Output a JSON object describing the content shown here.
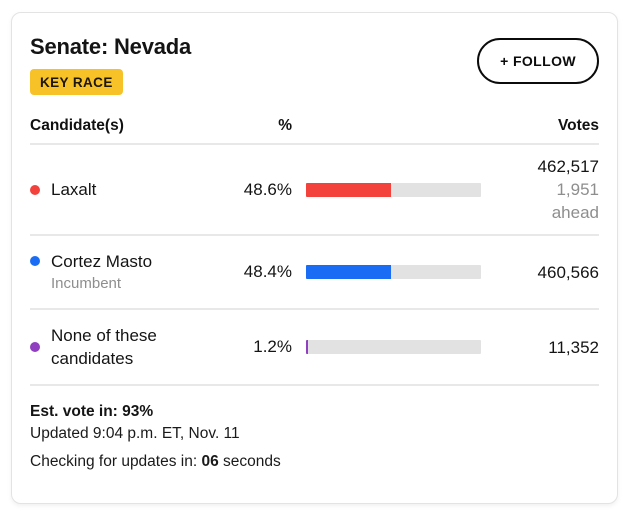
{
  "card": {
    "title": "Senate: Nevada",
    "key_race_label": "KEY RACE",
    "follow_label": "+ FOLLOW"
  },
  "colors": {
    "laxalt_red": "#F3413C",
    "cortez_masto_blue": "#1A6CF5",
    "none_purple": "#8F3FBF",
    "key_race_yellow": "#F7C128",
    "bar_track_gray": "#E2E2E2"
  },
  "table": {
    "headers": {
      "candidates": "Candidate(s)",
      "percent": "%",
      "votes": "Votes"
    },
    "rows": [
      {
        "name": "Laxalt",
        "sub": "",
        "pct_label": "48.6%",
        "pct_value": 48.6,
        "votes": "462,517",
        "margin": "1,951",
        "margin_note": "ahead",
        "color": "#F3413C"
      },
      {
        "name": "Cortez Masto",
        "sub": "Incumbent",
        "pct_label": "48.4%",
        "pct_value": 48.4,
        "votes": "460,566",
        "color": "#1A6CF5"
      },
      {
        "name": "None of these candidates",
        "sub": "",
        "pct_label": "1.2%",
        "pct_value": 1.2,
        "votes": "11,352",
        "color": "#8F3FBF"
      }
    ]
  },
  "footer": {
    "est_vote_label": "Est. vote in: 93%",
    "updated": "Updated 9:04 p.m. ET, Nov. 11",
    "checking_prefix": "Checking for updates in:",
    "checking_value": "06",
    "checking_suffix": "seconds"
  }
}
